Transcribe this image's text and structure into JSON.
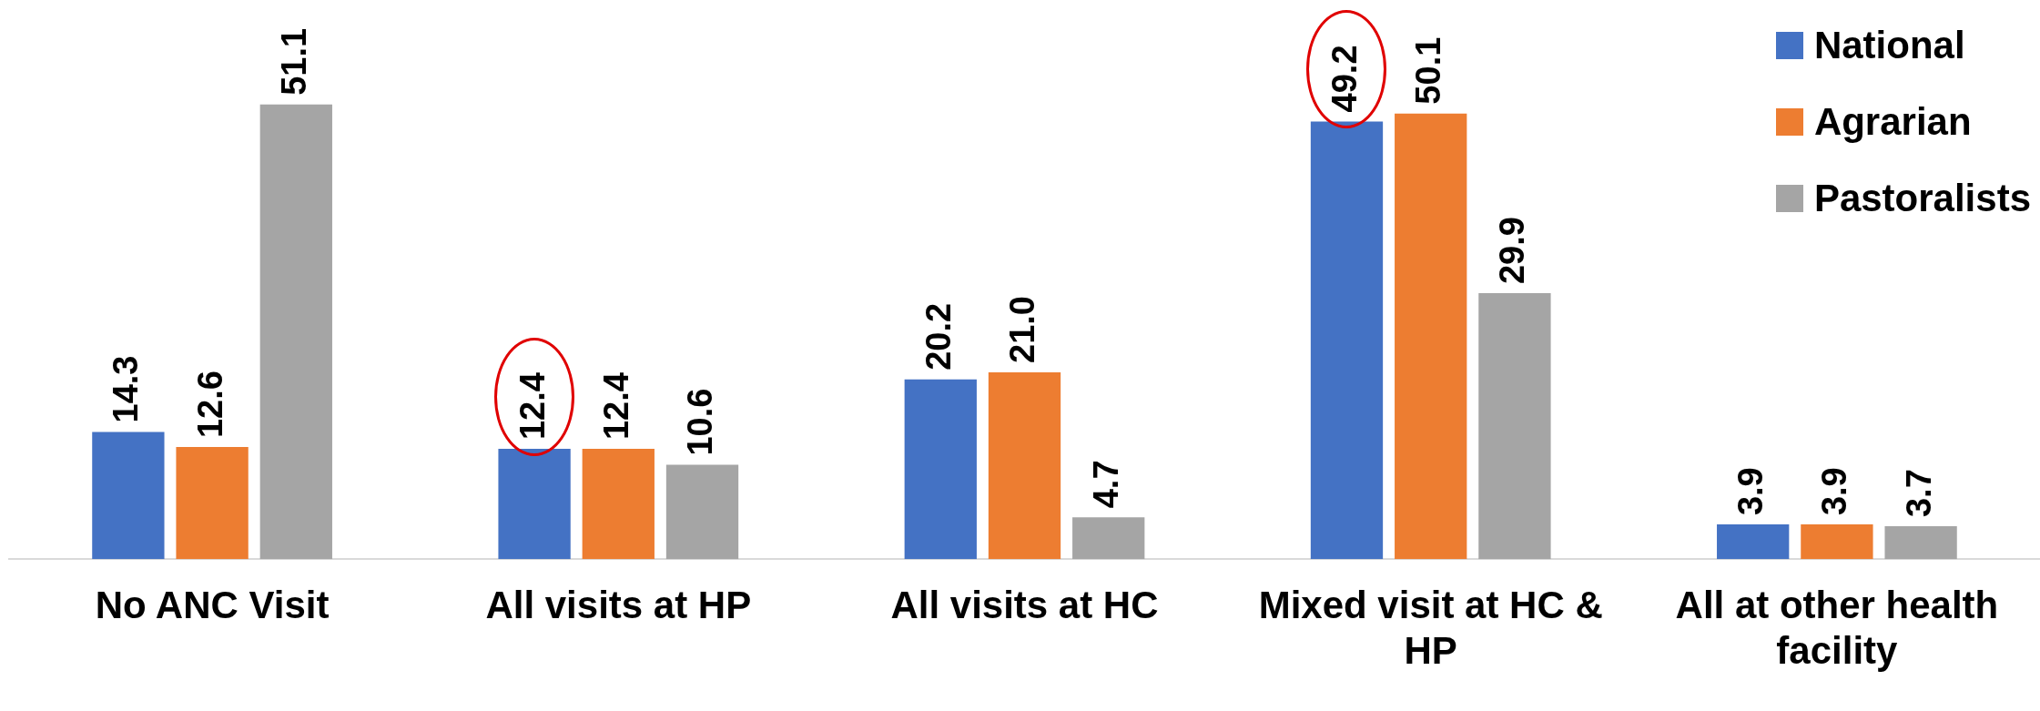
{
  "chart_data": {
    "type": "bar",
    "categories": [
      "No ANC Visit",
      "All visits at HP",
      "All visits at HC",
      "Mixed visit at HC & HP",
      "All at other health facility"
    ],
    "series": [
      {
        "name": "National",
        "color": "#4472c4",
        "values": [
          14.3,
          12.4,
          20.2,
          49.2,
          3.9
        ],
        "value_labels": [
          "14.3",
          "12.4",
          "20.2",
          "49.2",
          "3.9"
        ]
      },
      {
        "name": "Agrarian",
        "color": "#ed7d31",
        "values": [
          12.6,
          12.4,
          21.0,
          50.1,
          3.9
        ],
        "value_labels": [
          "12.6",
          "12.4",
          "21.0",
          "50.1",
          "3.9"
        ]
      },
      {
        "name": "Pastoralists",
        "color": "#a5a5a5",
        "values": [
          51.1,
          10.6,
          4.7,
          29.9,
          3.7
        ],
        "value_labels": [
          "51.1",
          "10.6",
          "4.7",
          "29.9",
          "3.7"
        ]
      }
    ],
    "legend": "top right",
    "grid": false
  }
}
